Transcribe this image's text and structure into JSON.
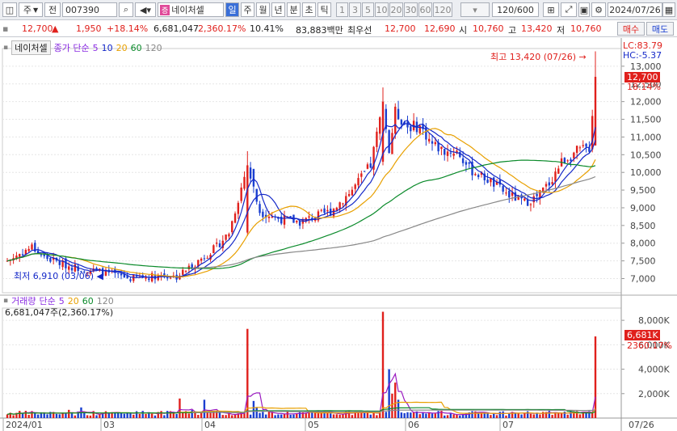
{
  "toolbar": {
    "market_sel": "주",
    "jeon_label": "전",
    "code": "007390",
    "stock_name": "네이처셀",
    "periods": [
      "일",
      "주",
      "월",
      "년",
      "분",
      "초",
      "틱"
    ],
    "active_period": "일",
    "intervals": [
      "1",
      "3",
      "5",
      "10",
      "20",
      "30",
      "60",
      "120"
    ],
    "count": "120/600",
    "date": "2024/07/26"
  },
  "quote": {
    "price": "12,700",
    "arrow": "▲",
    "change": "1,950",
    "change_pct": "+18.14%",
    "volume": "6,681,047",
    "volume_ratio": "2,360.17%",
    "turnover": "10.41%",
    "amount": "83,883백만",
    "priority_label": "최우선",
    "ask": "12,700",
    "bid": "12,690",
    "open_label": "시",
    "open": "10,760",
    "high_label": "고",
    "high": "13,420",
    "low_label": "저",
    "low": "10,760",
    "sell_btn": "매수",
    "buy_btn": "매도"
  },
  "price_panel": {
    "name": "네이처셀",
    "indicator": "종가 단순",
    "ma_labels": [
      "5",
      "10",
      "20",
      "60",
      "120"
    ],
    "ma_colors": [
      "#1428c8",
      "#1428c8",
      "#e8a000",
      "#0a8a2a",
      "#888888"
    ],
    "lc": "LC:83.79",
    "hc": "HC:-5.37",
    "current_price": "12,700",
    "current_pct": "18.14%",
    "max_label": "최고 13,420 (07/26)",
    "min_label": "최저 6,910 (03/06)",
    "y_ticks": [
      "13,000",
      "12,500",
      "12,000",
      "11,500",
      "11,000",
      "10,500",
      "10,000",
      "9,500",
      "9,000",
      "8,500",
      "8,000",
      "7,500",
      "7,000"
    ]
  },
  "volume_panel": {
    "name": "거래량",
    "indicator": "단순",
    "ma_labels": [
      "5",
      "20",
      "60",
      "120"
    ],
    "ma_colors": [
      "#9a1ac0",
      "#e8a000",
      "#0a8a2a",
      "#888888"
    ],
    "total": "6,681,047주(2,360.17%)",
    "current_volume": "6,681K",
    "current_pct": "2360.17%",
    "y_ticks": [
      "8,000K",
      "6,000K",
      "4,000K",
      "2,000K"
    ]
  },
  "x_axis": {
    "labels": [
      "2024/01",
      "03",
      "04",
      "05",
      "06",
      "07"
    ],
    "right_date": "07/26"
  },
  "chart_data": {
    "type": "candlestick",
    "series_price": {
      "unit": "KRW",
      "start": 7450,
      "end": 12700,
      "high": 13420,
      "low": 6910
    },
    "series_volume": {
      "unit": "shares",
      "last": 6681047
    }
  }
}
